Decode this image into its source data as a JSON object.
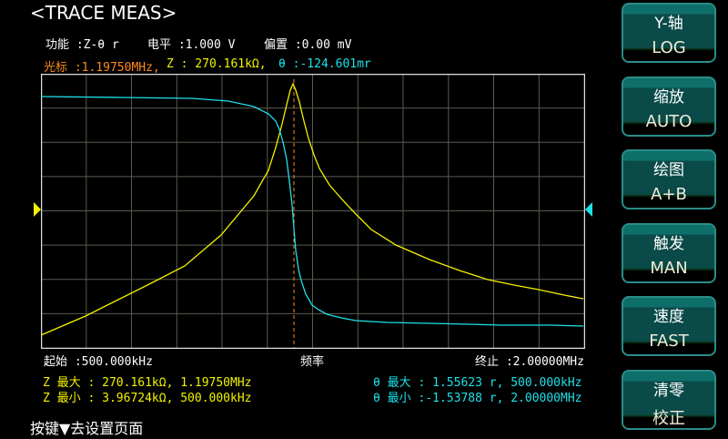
{
  "header": {
    "title": "<TRACE MEAS>"
  },
  "params": {
    "function": "功能 :Z-θ r",
    "level": "电平 :1.000 V",
    "bias": "偏置 :0.00 mV"
  },
  "cursor": {
    "freq": "光标 :1.19750MHz,",
    "z": "Z : 270.161kΩ,",
    "theta": "θ :-124.601mr"
  },
  "axis": {
    "start": "起始 :500.000kHz",
    "label": "频率",
    "stop": "终止 :2.00000MHz"
  },
  "summary": {
    "z_max": "Z 最大 : 270.161kΩ, 1.19750MHz",
    "z_min": "Z 最小 : 3.96724kΩ, 500.000kHz",
    "theta_max": "θ 最大 : 1.55623 r, 500.000kHz",
    "theta_min": "θ 最小 :-1.53788 r, 2.00000MHz"
  },
  "hint": "按键▼去设置页面",
  "softkeys": [
    {
      "title": "Y-轴",
      "value": "LOG"
    },
    {
      "title": "缩放",
      "value": "AUTO"
    },
    {
      "title": "绘图",
      "value": "A+B"
    },
    {
      "title": "触发",
      "value": "MAN"
    },
    {
      "title": "速度",
      "value": "FAST"
    },
    {
      "title": "清零",
      "value": "校正"
    }
  ],
  "colors": {
    "trace_a": "#f2f200",
    "trace_b": "#1ee0e8",
    "cursor": "#ff8a1e",
    "grid": "#5a5a50"
  }
}
